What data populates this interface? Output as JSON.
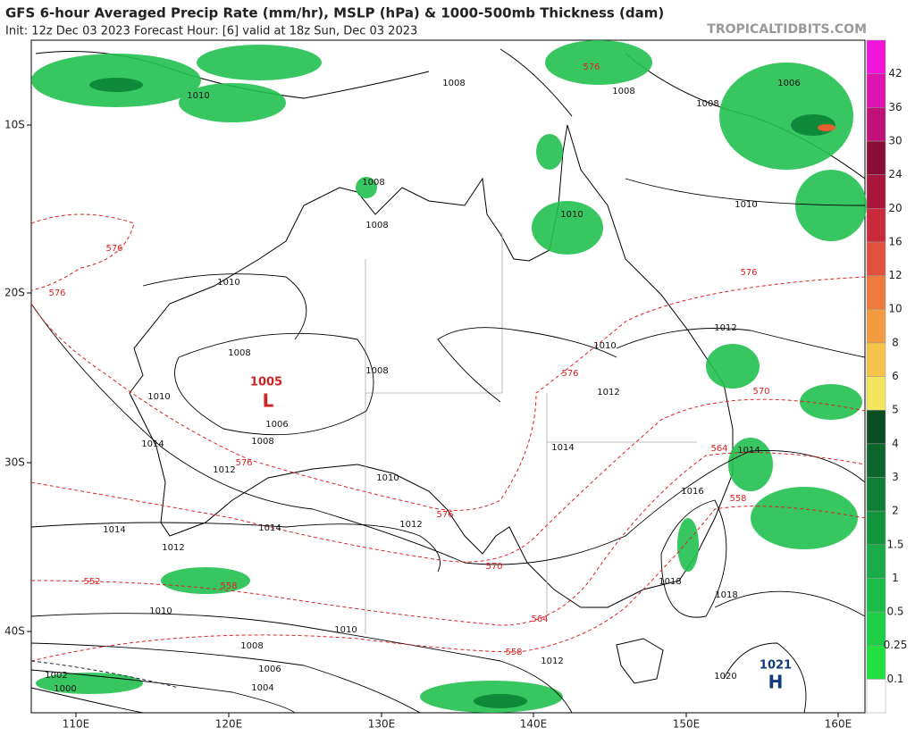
{
  "header": {
    "title": "GFS 6-hour Averaged Precip Rate (mm/hr), MSLP (hPa) & 1000-500mb Thickness (dam)",
    "subtitle": "Init: 12z Dec 03 2023   Forecast Hour: [6]   valid at 18z Sun, Dec 03 2023",
    "site": "TROPICALTIDBITS.COM"
  },
  "lat_labels": [
    "10S",
    "20S",
    "30S",
    "40S"
  ],
  "lon_labels": [
    "110E",
    "120E",
    "130E",
    "140E",
    "150E",
    "160E"
  ],
  "colorbar": [
    0.1,
    0.25,
    0.5,
    1,
    1.5,
    2,
    3,
    4,
    5,
    6,
    8,
    10,
    12,
    16,
    20,
    24,
    30,
    36,
    42
  ],
  "isobar_labels": [
    "1008",
    "1008",
    "1008",
    "1006",
    "1010",
    "1008",
    "1008",
    "1010",
    "1010",
    "1010",
    "1012",
    "1010",
    "1008",
    "1008",
    "1012",
    "1010",
    "1006",
    "1008",
    "1014",
    "1014",
    "1014",
    "1012",
    "1010",
    "1016",
    "1012",
    "1014",
    "1014",
    "1012",
    "1018",
    "1018",
    "1010",
    "1010",
    "1008",
    "1012",
    "1006",
    "1002",
    "1020",
    "1004",
    "1000"
  ],
  "thickness_labels": [
    "576",
    "576",
    "576",
    "576",
    "576",
    "570",
    "576",
    "576",
    "564",
    "558",
    "570",
    "558",
    "552",
    "564",
    "558"
  ],
  "low": {
    "pressure": "1005",
    "symbol": "L"
  },
  "high": {
    "pressure": "1021",
    "symbol": "H"
  }
}
